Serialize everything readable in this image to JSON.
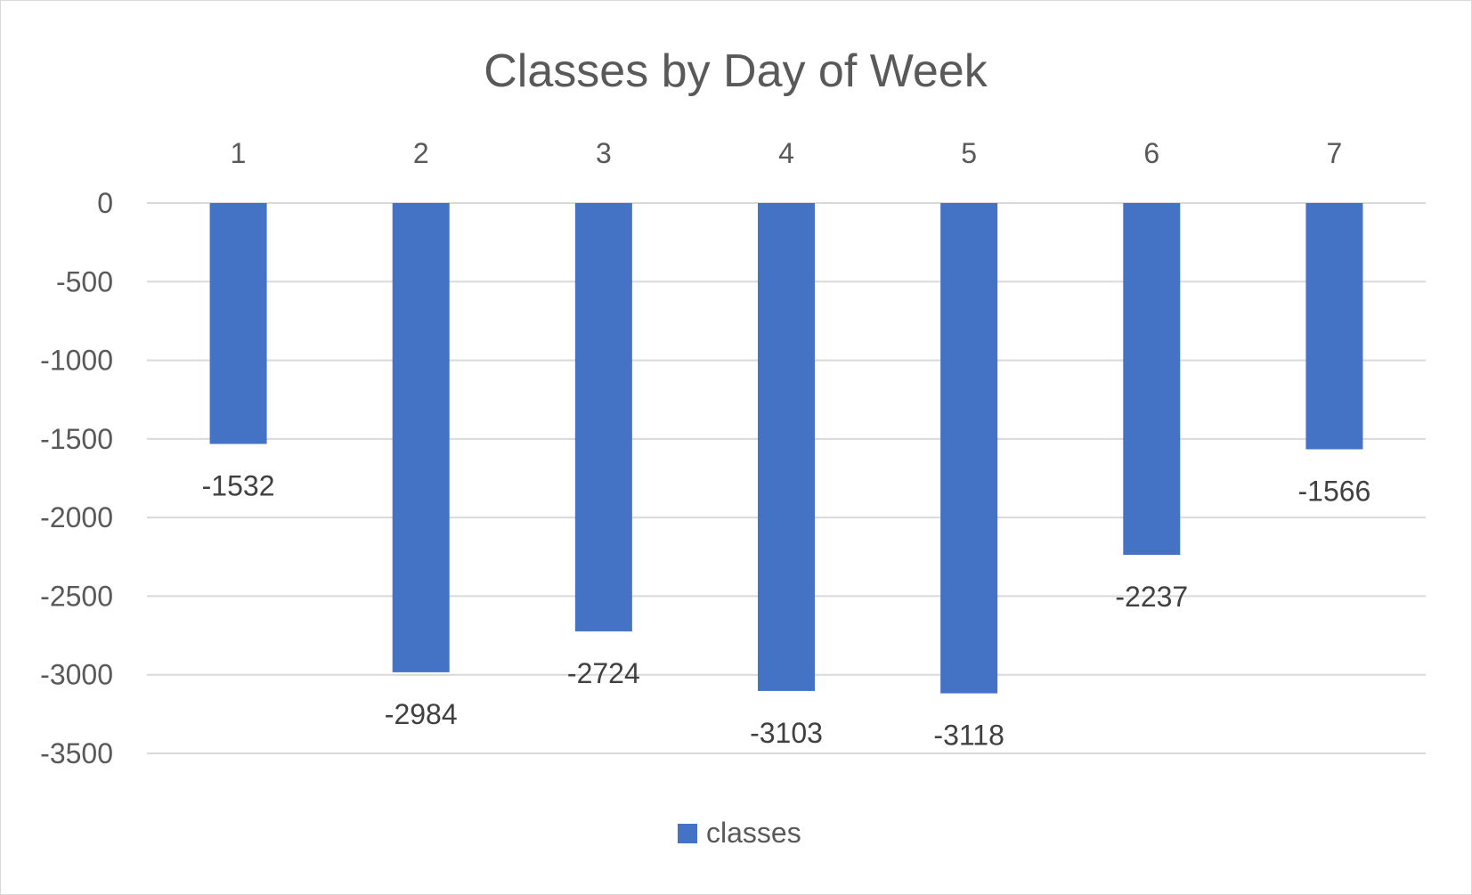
{
  "chart_data": {
    "type": "bar",
    "title": "Classes by Day of Week",
    "categories": [
      "1",
      "2",
      "3",
      "4",
      "5",
      "6",
      "7"
    ],
    "series": [
      {
        "name": "classes",
        "values": [
          -1532,
          -2984,
          -2724,
          -3103,
          -3118,
          -2237,
          -1566
        ],
        "color": "#4472c4"
      }
    ],
    "ylim": [
      -3500,
      0
    ],
    "yticks": [
      0,
      -500,
      -1000,
      -1500,
      -2000,
      -2500,
      -3000,
      -3500
    ],
    "ytick_labels": [
      "0",
      "-500",
      "-1000",
      "-1500",
      "-2000",
      "-2500",
      "-3000",
      "-3500"
    ],
    "xaxis_position": "top",
    "grid": true,
    "legend": "bottom",
    "data_labels": [
      "-1532",
      "-2984",
      "-2724",
      "-3103",
      "-3118",
      "-2237",
      "-1566"
    ]
  }
}
